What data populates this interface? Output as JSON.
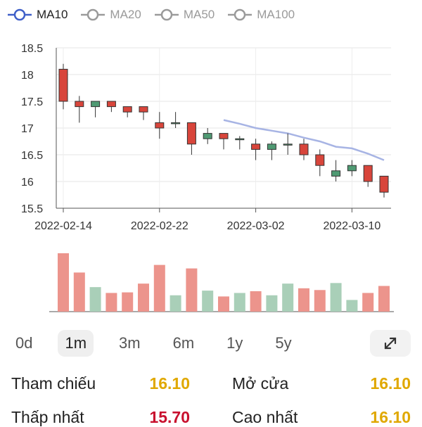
{
  "legend": [
    {
      "label": "MA10",
      "active": true
    },
    {
      "label": "MA20",
      "active": false
    },
    {
      "label": "MA50",
      "active": false
    },
    {
      "label": "MA100",
      "active": false
    }
  ],
  "colors": {
    "up": "#4f9a73",
    "down": "#d8453b",
    "ma": "#a7b4e4",
    "vol_up": "#a9cfb8",
    "vol_down": "#ec948c",
    "legend_active": "#3f5fc8",
    "legend_inactive": "#9a9a9a"
  },
  "chart_data": {
    "type": "candlestick",
    "y_ticks": [
      "18.5",
      "18",
      "17.5",
      "17",
      "16.5",
      "16",
      "15.5"
    ],
    "ylim": [
      15.5,
      18.5
    ],
    "x_ticks": [
      "2022-02-14",
      "2022-02-22",
      "2022-03-02",
      "2022-03-10"
    ],
    "x_tick_index": [
      0,
      6,
      12,
      18
    ],
    "candles": [
      {
        "open": 18.1,
        "close": 17.5,
        "high": 18.2,
        "low": 17.35
      },
      {
        "open": 17.5,
        "close": 17.4,
        "high": 17.6,
        "low": 17.1
      },
      {
        "open": 17.4,
        "close": 17.5,
        "high": 17.5,
        "low": 17.2
      },
      {
        "open": 17.5,
        "close": 17.4,
        "high": 17.5,
        "low": 17.3
      },
      {
        "open": 17.4,
        "close": 17.3,
        "high": 17.4,
        "low": 17.2
      },
      {
        "open": 17.4,
        "close": 17.3,
        "high": 17.4,
        "low": 17.15
      },
      {
        "open": 17.1,
        "close": 17.0,
        "high": 17.3,
        "low": 16.8
      },
      {
        "open": 17.1,
        "close": 17.1,
        "high": 17.3,
        "low": 17.0
      },
      {
        "open": 17.1,
        "close": 16.7,
        "high": 17.1,
        "low": 16.5
      },
      {
        "open": 16.8,
        "close": 16.9,
        "high": 17.0,
        "low": 16.7
      },
      {
        "open": 16.9,
        "close": 16.8,
        "high": 16.9,
        "low": 16.6
      },
      {
        "open": 16.8,
        "close": 16.8,
        "high": 16.85,
        "low": 16.6
      },
      {
        "open": 16.7,
        "close": 16.6,
        "high": 16.8,
        "low": 16.4
      },
      {
        "open": 16.6,
        "close": 16.7,
        "high": 16.75,
        "low": 16.4
      },
      {
        "open": 16.7,
        "close": 16.7,
        "high": 16.9,
        "low": 16.5
      },
      {
        "open": 16.7,
        "close": 16.5,
        "high": 16.8,
        "low": 16.4
      },
      {
        "open": 16.5,
        "close": 16.3,
        "high": 16.6,
        "low": 16.1
      },
      {
        "open": 16.1,
        "close": 16.2,
        "high": 16.4,
        "low": 16.0
      },
      {
        "open": 16.2,
        "close": 16.3,
        "high": 16.4,
        "low": 16.1
      },
      {
        "open": 16.3,
        "close": 16.0,
        "high": 16.3,
        "low": 15.9
      },
      {
        "open": 16.1,
        "close": 15.8,
        "high": 16.1,
        "low": 15.7
      }
    ],
    "ma10": [
      null,
      null,
      null,
      null,
      null,
      null,
      null,
      null,
      null,
      null,
      17.15,
      17.08,
      17.0,
      16.95,
      16.9,
      16.82,
      16.75,
      16.65,
      16.62,
      16.52,
      16.4
    ],
    "volume": [
      1.0,
      0.67,
      0.42,
      0.32,
      0.33,
      0.48,
      0.8,
      0.28,
      0.74,
      0.36,
      0.26,
      0.32,
      0.35,
      0.28,
      0.48,
      0.4,
      0.37,
      0.49,
      0.2,
      0.32,
      0.44
    ]
  },
  "periods": [
    {
      "label": "0d",
      "active": false
    },
    {
      "label": "1m",
      "active": true
    },
    {
      "label": "3m",
      "active": false
    },
    {
      "label": "6m",
      "active": false
    },
    {
      "label": "1y",
      "active": false
    },
    {
      "label": "5y",
      "active": false
    }
  ],
  "expand_icon": "expand-icon",
  "info": {
    "tham_chieu_label": "Tham chiếu",
    "tham_chieu_value": "16.10",
    "mo_cua_label": "Mở cửa",
    "mo_cua_value": "16.10",
    "thap_nhat_label": "Thấp nhất",
    "thap_nhat_value": "15.70",
    "cao_nhat_label": "Cao nhất",
    "cao_nhat_value": "16.10"
  }
}
